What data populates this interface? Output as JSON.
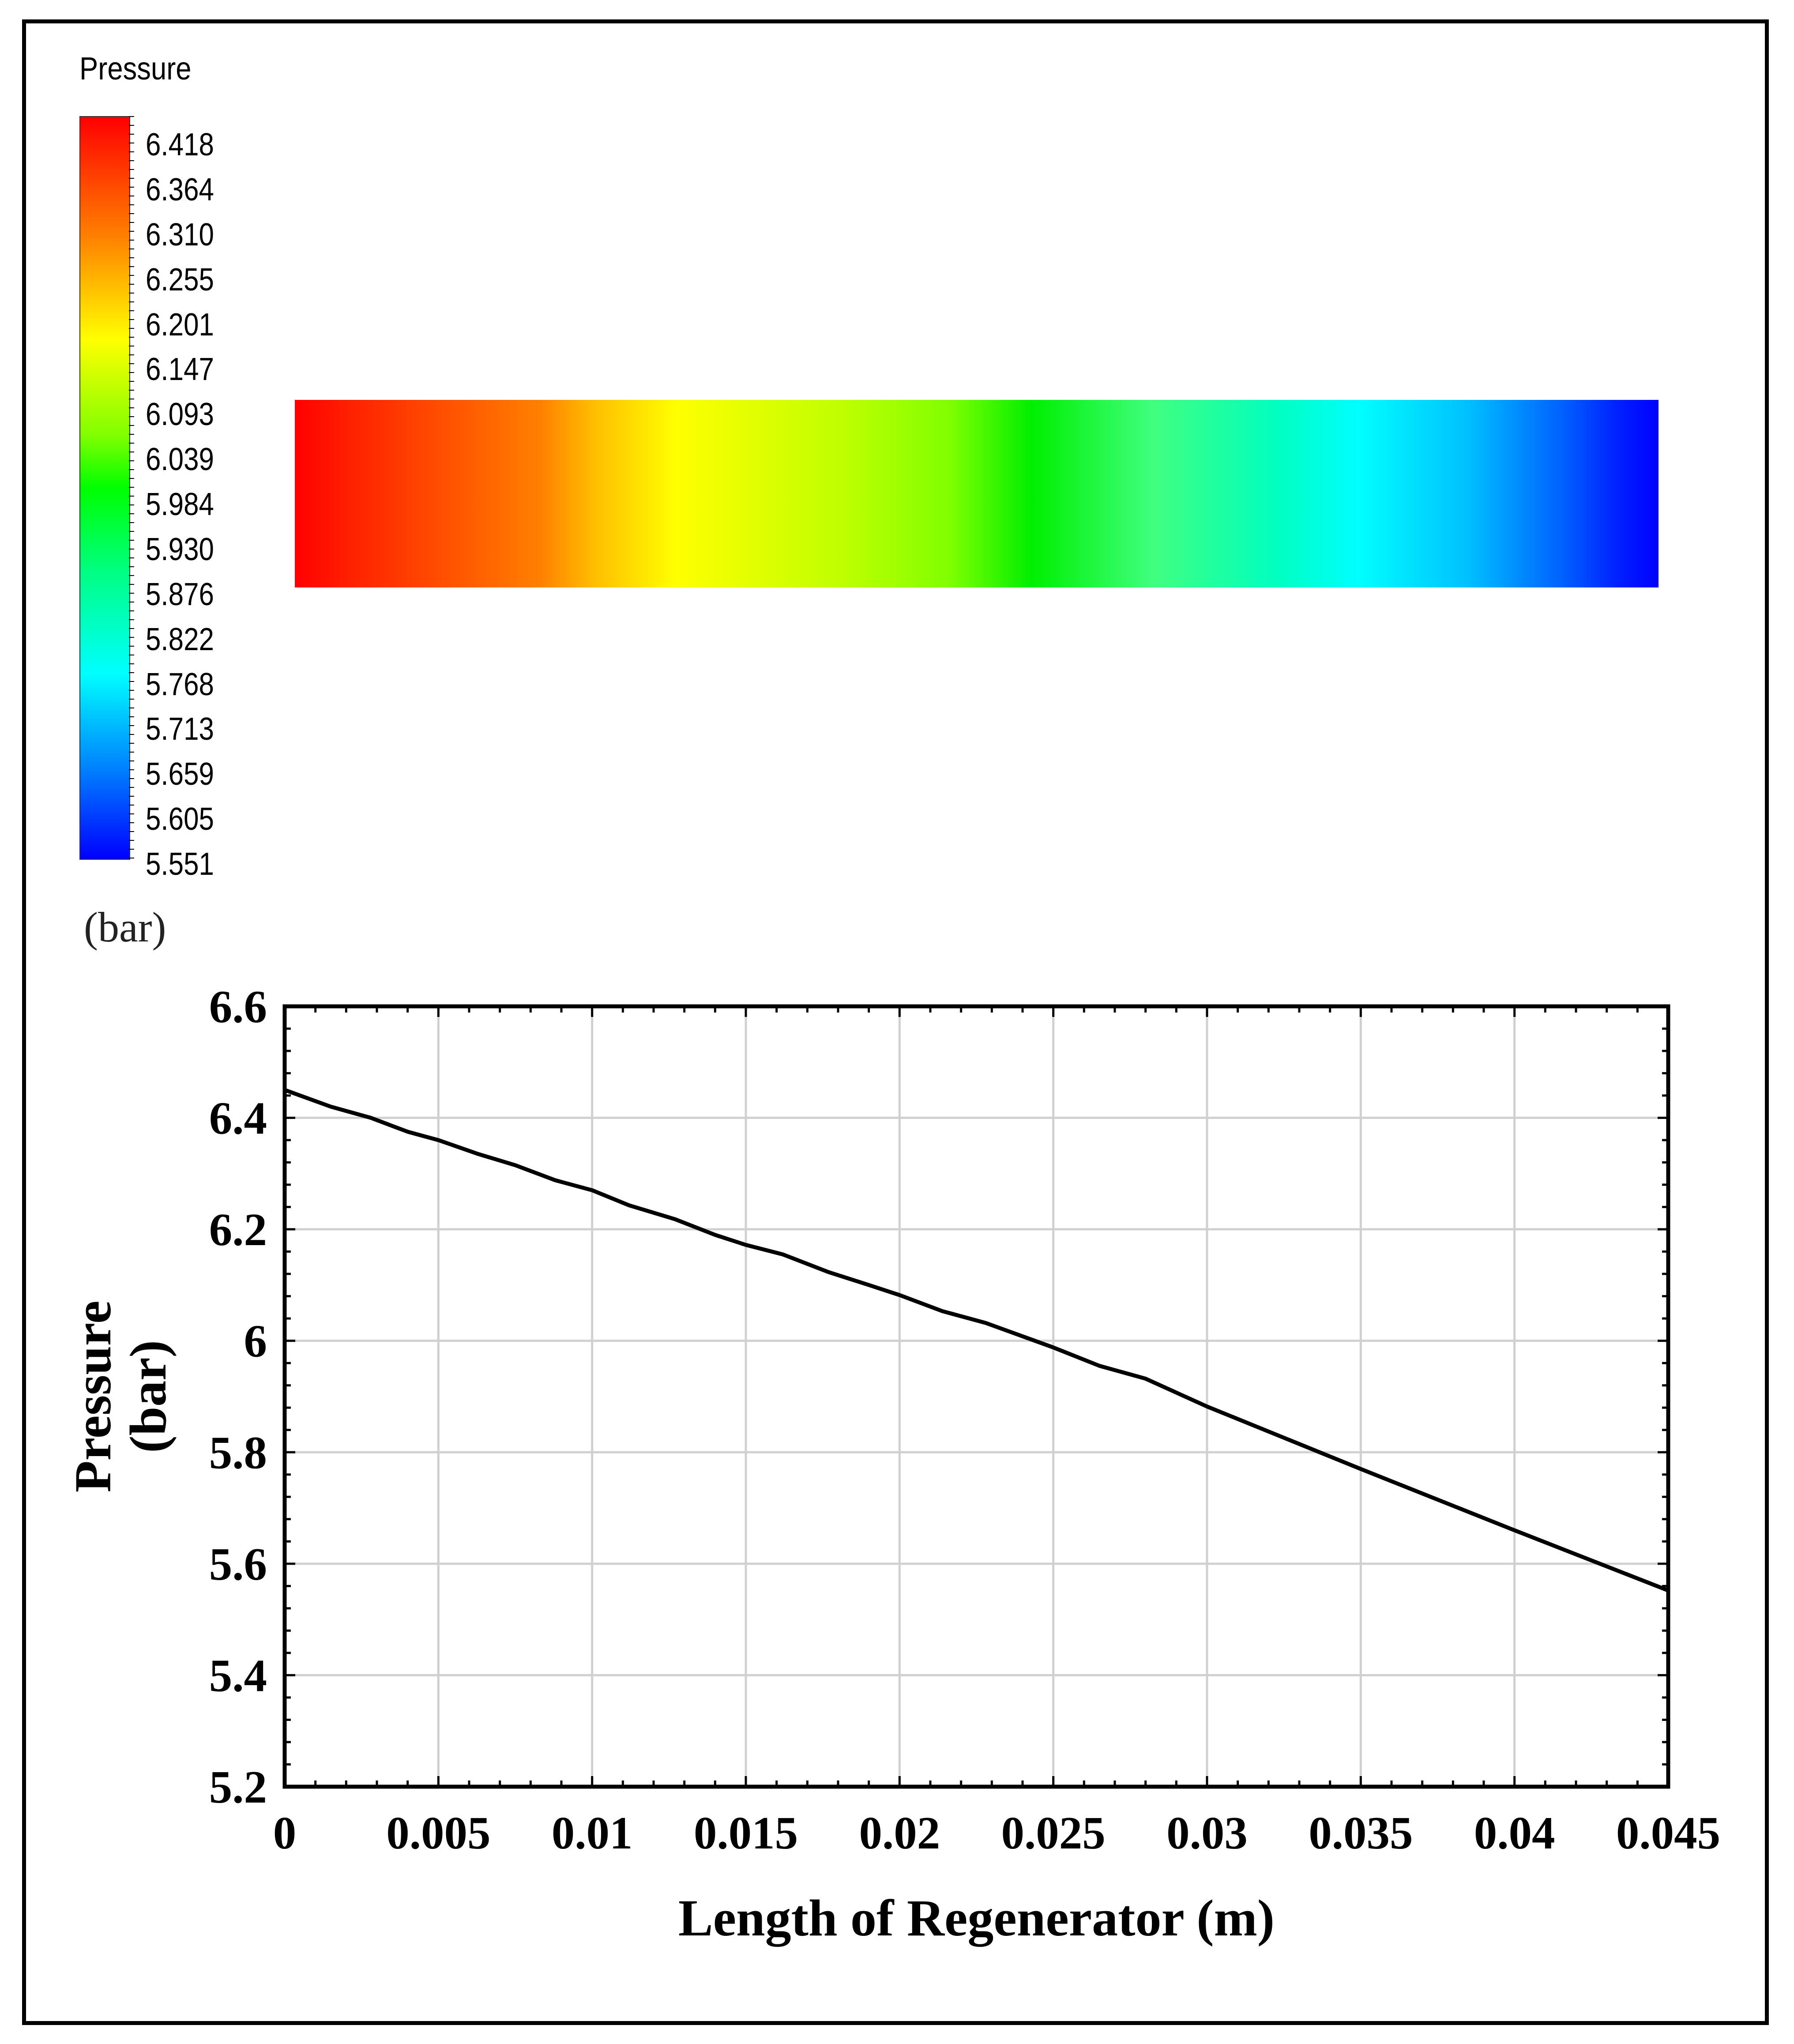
{
  "colorbar": {
    "title": "Pressure",
    "unit": "(bar)",
    "labels": [
      "6.418",
      "6.364",
      "6.310",
      "6.255",
      "6.201",
      "6.147",
      "6.093",
      "6.039",
      "5.984",
      "5.930",
      "5.876",
      "5.822",
      "5.768",
      "5.713",
      "5.659",
      "5.605",
      "5.551"
    ],
    "colormap": "jet",
    "max": 6.418,
    "min": 5.551
  },
  "contour": {
    "gradient_direction": "left-to-right",
    "from_color": "#ff0000",
    "to_color": "#0000ff"
  },
  "chart_data": {
    "type": "line",
    "title": "",
    "xlabel": "Length of Regenerator (m)",
    "ylabel_lines": [
      "Pressure",
      "(bar)"
    ],
    "xlim": [
      0,
      0.045
    ],
    "ylim": [
      5.2,
      6.6
    ],
    "xticks": [
      0,
      0.005,
      0.01,
      0.015,
      0.02,
      0.025,
      0.03,
      0.035,
      0.04,
      0.045
    ],
    "xtick_labels": [
      "0",
      "0.005",
      "0.01",
      "0.015",
      "0.02",
      "0.025",
      "0.03",
      "0.035",
      "0.04",
      "0.045"
    ],
    "yticks": [
      5.2,
      5.4,
      5.6,
      5.8,
      6,
      6.2,
      6.4,
      6.6
    ],
    "ytick_labels": [
      "5.2",
      "5.4",
      "5.6",
      "5.8",
      "6",
      "6.2",
      "6.4",
      "6.6"
    ],
    "grid": true,
    "line_color": "#000000",
    "series": [
      {
        "x": [
          0,
          0.0015,
          0.0028,
          0.004,
          0.005,
          0.0063,
          0.0075,
          0.0088,
          0.01,
          0.0112,
          0.0127,
          0.014,
          0.015,
          0.0162,
          0.0177,
          0.019,
          0.02,
          0.0214,
          0.0228,
          0.024,
          0.025,
          0.0265,
          0.028,
          0.03,
          0.035,
          0.04,
          0.045
        ],
        "y": [
          6.45,
          6.42,
          6.4,
          6.375,
          6.36,
          6.335,
          6.315,
          6.288,
          6.27,
          6.243,
          6.218,
          6.19,
          6.172,
          6.155,
          6.123,
          6.1,
          6.082,
          6.053,
          6.032,
          6.008,
          5.988,
          5.955,
          5.932,
          5.882,
          5.77,
          5.66,
          5.552
        ]
      }
    ]
  }
}
